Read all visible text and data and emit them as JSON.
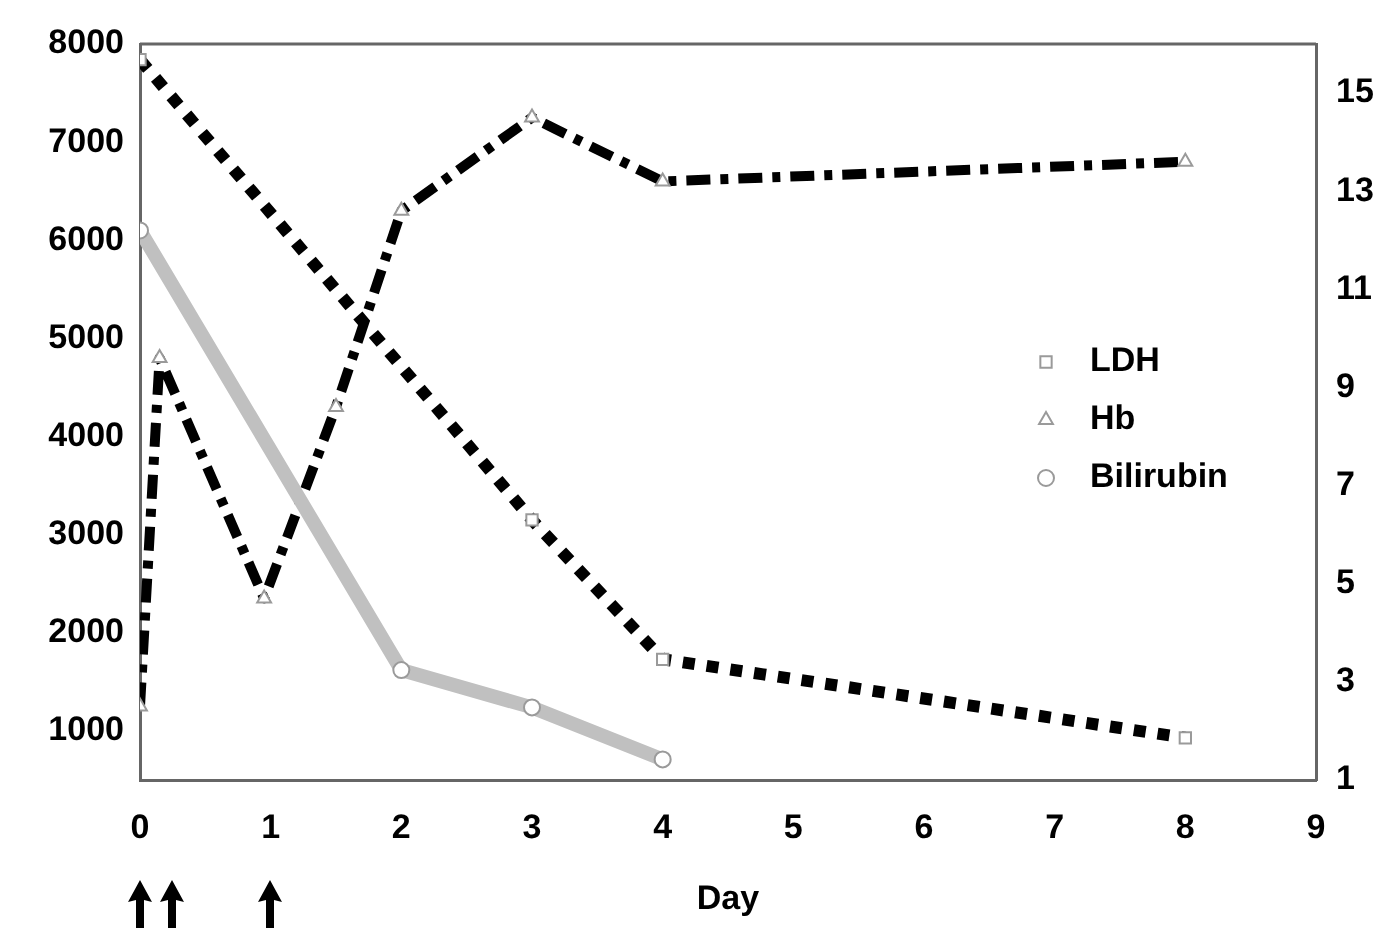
{
  "chart_data": {
    "type": "line",
    "xlabel": "Day",
    "xlim": [
      0,
      9
    ],
    "xticks": [
      0,
      1,
      2,
      3,
      4,
      5,
      6,
      7,
      8,
      9
    ],
    "ylim": [
      500,
      8000
    ],
    "yticks": [
      1000,
      2000,
      3000,
      4000,
      5000,
      6000,
      7000,
      8000
    ],
    "y2lim": [
      1,
      16
    ],
    "y2ticks": [
      1,
      3,
      5,
      7,
      9,
      11,
      13,
      15
    ],
    "grid": false,
    "legend": "right",
    "series": [
      {
        "name": "LDH",
        "color": "#000000",
        "line_style": "dotted",
        "marker": "square",
        "x": [
          0,
          3,
          4,
          8
        ],
        "values": [
          7840,
          3150,
          1730,
          930
        ]
      },
      {
        "name": "Hb",
        "color": "#000000",
        "line_style": "dashed",
        "marker": "triangle",
        "axis": "y2",
        "x": [
          0,
          0.15,
          0.95,
          1.5,
          2,
          3,
          4,
          8
        ],
        "values": [
          2.5,
          9.6,
          4.7,
          8.6,
          12.6,
          14.5,
          13.2,
          13.6
        ]
      },
      {
        "name": "Bilirubin",
        "color": "#c0c0c0",
        "line_style": "solid",
        "marker": "circle",
        "x": [
          0,
          2,
          3,
          4
        ],
        "values": [
          6100,
          1620,
          1240,
          710
        ]
      }
    ]
  }
}
